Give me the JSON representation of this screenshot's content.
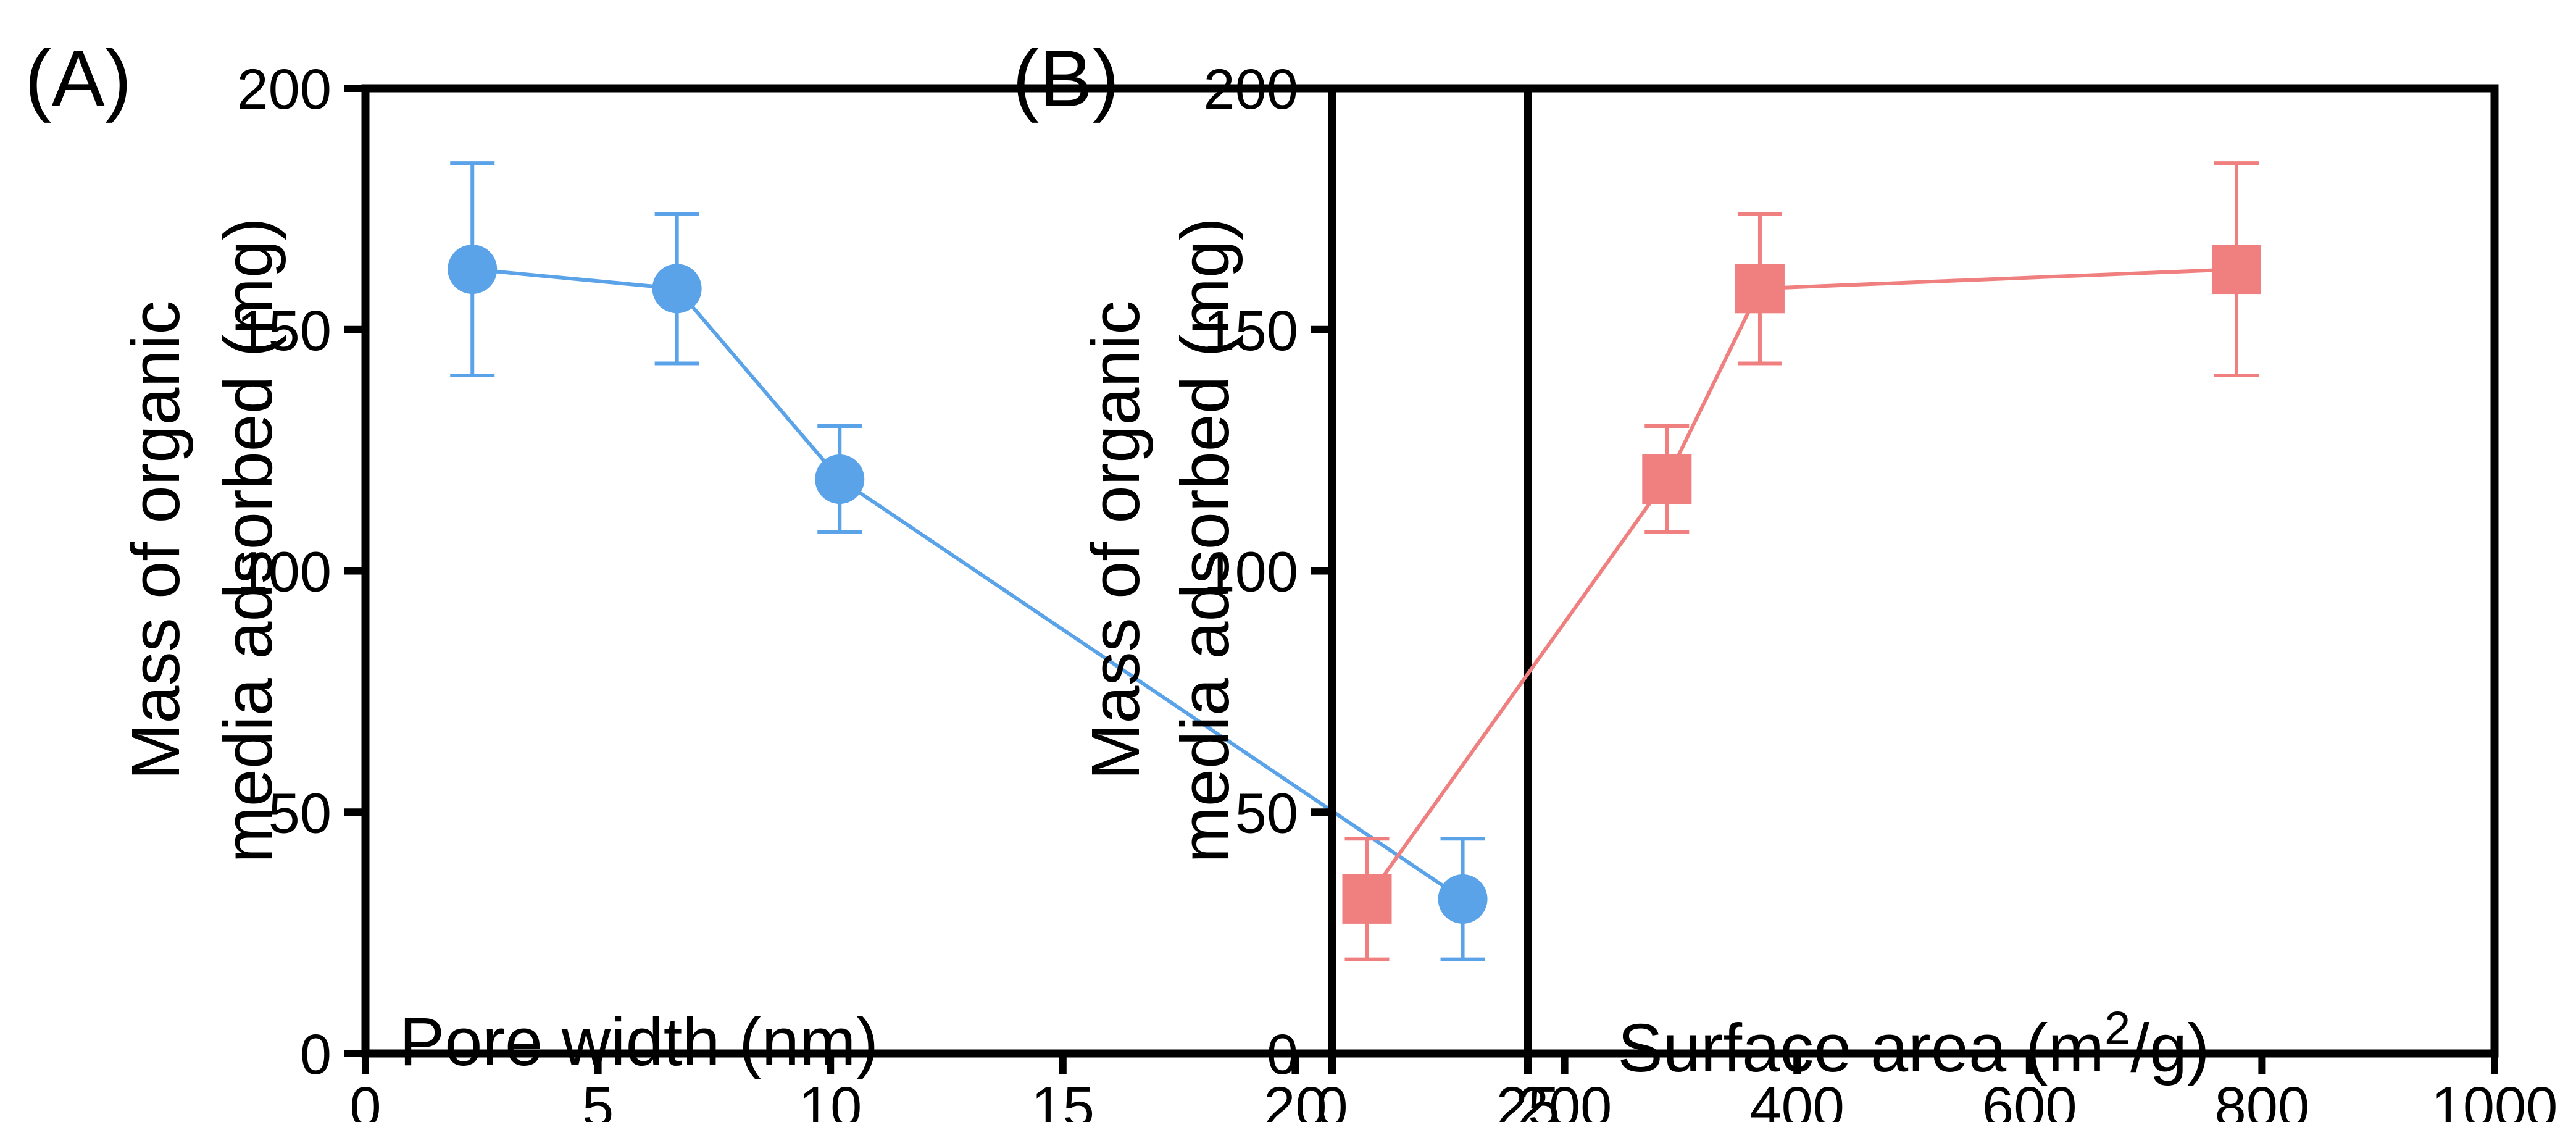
{
  "chart_data": [
    {
      "type": "line",
      "panel_label": "(A)",
      "xlabel": "Pore width (nm)",
      "ylabel_line1": "Mass of organic",
      "ylabel_line2": "media adsorbed (mg)",
      "xlim": [
        0,
        25
      ],
      "ylim": [
        0,
        200
      ],
      "xticks": [
        0,
        5,
        10,
        15,
        20,
        25
      ],
      "yticks": [
        0,
        50,
        100,
        150,
        200
      ],
      "grid": false,
      "series": [
        {
          "name": "Pore width",
          "color": "#5BA3E8",
          "marker": "circle",
          "x": [
            2.3,
            6.7,
            10.2,
            23.6
          ],
          "y": [
            162.5,
            158.5,
            119.0,
            32.0
          ],
          "err": [
            22.0,
            15.5,
            11.0,
            12.5
          ]
        }
      ]
    },
    {
      "type": "line",
      "panel_label": "(B)",
      "xlabel_main": "Surface area (m",
      "xlabel_sup": "2",
      "xlabel_end": "/g)",
      "ylabel_line1": "Mass of organic",
      "ylabel_line2": "media adsorbed (mg)",
      "xlim": [
        0,
        1000
      ],
      "ylim": [
        0,
        200
      ],
      "xticks": [
        0,
        200,
        400,
        600,
        800,
        1000
      ],
      "yticks": [
        0,
        50,
        100,
        150,
        200
      ],
      "grid": false,
      "series": [
        {
          "name": "Surface area",
          "color": "#F08080",
          "marker": "square",
          "x": [
            30,
            288,
            368,
            778
          ],
          "y": [
            32.0,
            119.0,
            158.5,
            162.5
          ],
          "err": [
            12.5,
            11.0,
            15.5,
            22.0
          ]
        }
      ]
    }
  ]
}
